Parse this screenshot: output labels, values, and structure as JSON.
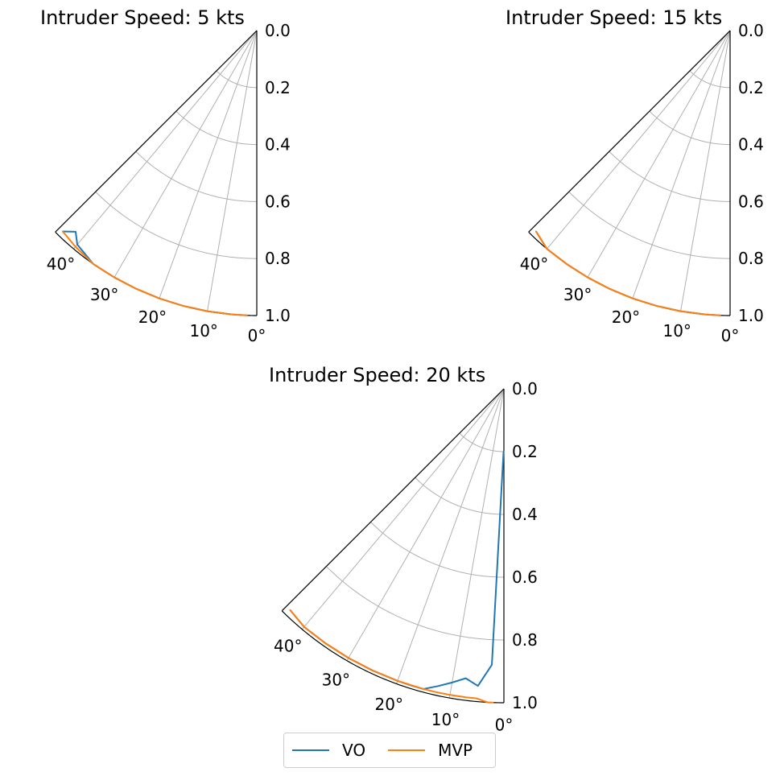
{
  "chart_data": [
    {
      "type": "line",
      "projection": "polar",
      "title": "Intruder Speed: 5 kts",
      "theta_range_deg": [
        0,
        45
      ],
      "r_range": [
        0,
        1
      ],
      "r_ticks": [
        "0.0",
        "0.2",
        "0.4",
        "0.6",
        "0.8",
        "1.0"
      ],
      "theta_ticks": [
        "0°",
        "10°",
        "20°",
        "30°",
        "40°"
      ],
      "grid": true,
      "series": [
        {
          "name": "VO",
          "color": "#1f77b4",
          "theta": [
            2,
            5,
            10,
            15,
            20,
            25,
            30,
            35,
            40,
            42,
            44
          ],
          "r": [
            1.0,
            1.0,
            1.0,
            1.0,
            1.0,
            1.0,
            1.0,
            1.0,
            0.98,
            0.95,
            0.98
          ]
        },
        {
          "name": "MVP",
          "color": "#ff7f0e",
          "theta": [
            2,
            5,
            10,
            15,
            20,
            25,
            30,
            35,
            40,
            44
          ],
          "r": [
            1.0,
            1.0,
            1.0,
            1.0,
            1.0,
            1.0,
            1.0,
            1.0,
            0.99,
            0.98
          ]
        }
      ]
    },
    {
      "type": "line",
      "projection": "polar",
      "title": "Intruder Speed: 15 kts",
      "theta_range_deg": [
        0,
        45
      ],
      "r_range": [
        0,
        1
      ],
      "r_ticks": [
        "0.0",
        "0.2",
        "0.4",
        "0.6",
        "0.8",
        "1.0"
      ],
      "theta_ticks": [
        "0°",
        "10°",
        "20°",
        "30°",
        "40°"
      ],
      "grid": true,
      "series": [
        {
          "name": "VO",
          "color": "#1f77b4",
          "theta": [
            2,
            5,
            10,
            15,
            20,
            25,
            30,
            35,
            40,
            44
          ],
          "r": [
            1.0,
            1.0,
            1.0,
            1.0,
            1.0,
            1.0,
            1.0,
            1.0,
            1.0,
            0.98
          ]
        },
        {
          "name": "MVP",
          "color": "#ff7f0e",
          "theta": [
            2,
            5,
            10,
            15,
            20,
            25,
            30,
            35,
            40,
            44
          ],
          "r": [
            1.0,
            1.0,
            1.0,
            1.0,
            1.0,
            1.0,
            1.0,
            1.0,
            1.0,
            0.98
          ]
        }
      ]
    },
    {
      "type": "line",
      "projection": "polar",
      "title": "Intruder Speed: 20 kts",
      "theta_range_deg": [
        0,
        45
      ],
      "r_range": [
        0,
        1
      ],
      "r_ticks": [
        "0.0",
        "0.2",
        "0.4",
        "0.6",
        "0.8",
        "1.0"
      ],
      "theta_ticks": [
        "0°",
        "10°",
        "20°",
        "30°",
        "40°"
      ],
      "grid": true,
      "series": [
        {
          "name": "VO",
          "color": "#1f77b4",
          "theta": [
            0.3,
            0.8,
            2.5,
            5,
            7.5,
            10,
            12.5,
            15,
            17.5,
            20,
            25,
            30,
            35,
            40,
            44
          ],
          "r": [
            0.2,
            0.24,
            0.88,
            0.95,
            0.93,
            0.95,
            0.97,
            0.99,
            0.99,
            0.99,
            0.99,
            0.99,
            0.99,
            0.99,
            0.98
          ]
        },
        {
          "name": "MVP",
          "color": "#ff7f0e",
          "theta": [
            2,
            3,
            5,
            7,
            10,
            12.5,
            15,
            20,
            25,
            30,
            35,
            40,
            44
          ],
          "r": [
            1.0,
            1.0,
            0.99,
            0.99,
            0.99,
            0.99,
            0.99,
            0.99,
            0.99,
            0.99,
            0.99,
            0.99,
            0.98
          ]
        }
      ]
    }
  ],
  "legend": {
    "placement": "bottom-center",
    "columns": 2,
    "items": [
      {
        "label": "VO",
        "color": "#1f77b4"
      },
      {
        "label": "MVP",
        "color": "#ff7f0e"
      }
    ]
  }
}
